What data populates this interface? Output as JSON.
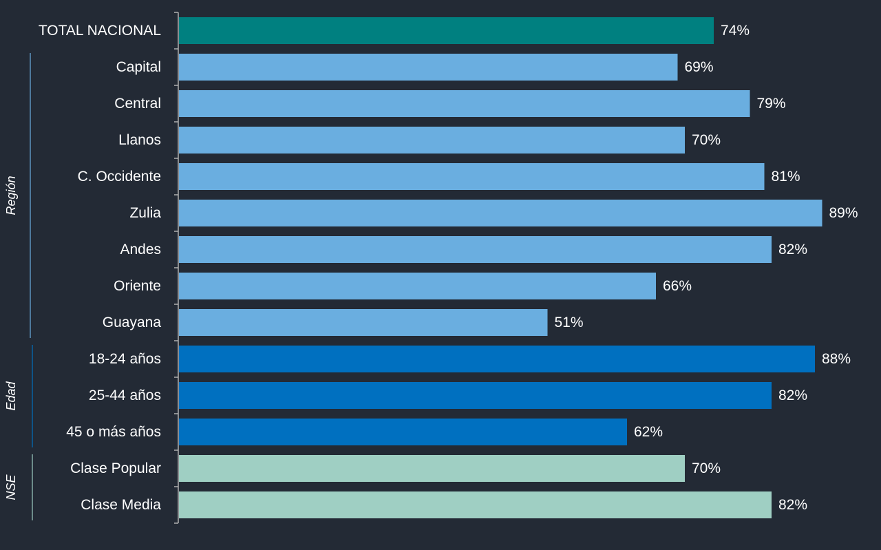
{
  "chart_data": {
    "type": "bar",
    "orientation": "horizontal",
    "title": "",
    "xlabel": "",
    "ylabel": "",
    "xlim": [
      0,
      100
    ],
    "value_suffix": "%",
    "categories": [
      "TOTAL NACIONAL",
      "Capital",
      "Central",
      "Llanos",
      "C. Occidente",
      "Zulia",
      "Andes",
      "Oriente",
      "Guayana",
      "18-24 años",
      "25-44 años",
      "45 o más años",
      "Clase Popular",
      "Clase Media"
    ],
    "values": [
      74,
      69,
      79,
      70,
      81,
      89,
      82,
      66,
      51,
      88,
      82,
      62,
      70,
      82
    ],
    "value_labels": [
      "74%",
      "69%",
      "79%",
      "70%",
      "81%",
      "89%",
      "82%",
      "66%",
      "51%",
      "88%",
      "82%",
      "62%",
      "70%",
      "82%"
    ],
    "groups": [
      {
        "name": "Total",
        "label": "",
        "start": 0,
        "end": 0,
        "color": "#008080"
      },
      {
        "name": "Region",
        "label": "Región",
        "start": 1,
        "end": 8,
        "color": "#6aaee0"
      },
      {
        "name": "Edad",
        "label": "Edad",
        "start": 9,
        "end": 11,
        "color": "#0070c0"
      },
      {
        "name": "NSE",
        "label": "NSE",
        "start": 12,
        "end": 13,
        "color": "#9fcfc3"
      }
    ],
    "grid": false,
    "legend": "none"
  }
}
